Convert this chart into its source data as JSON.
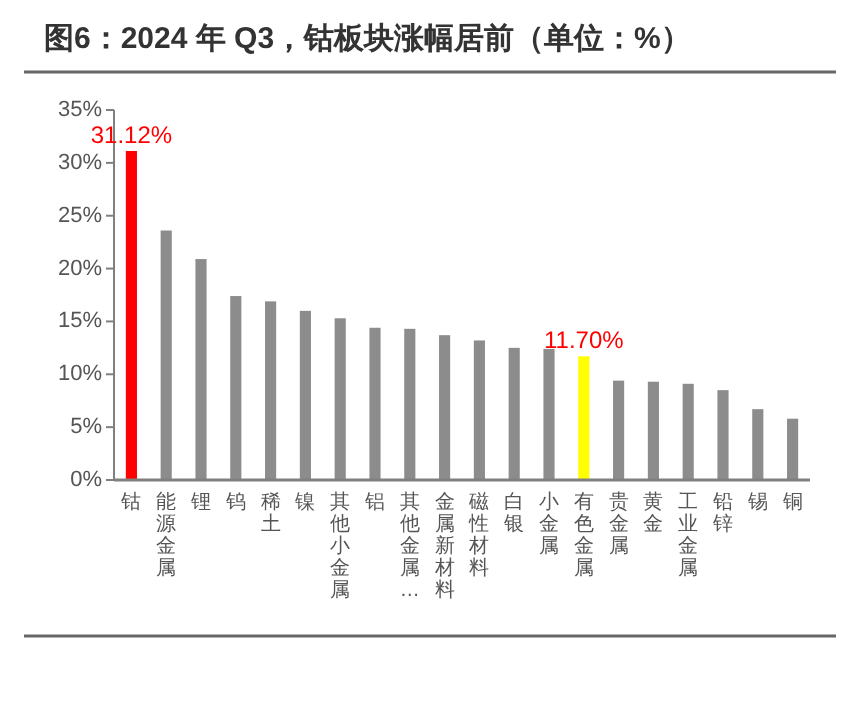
{
  "chart_data": {
    "type": "bar",
    "title": "图6：2024 年 Q3，钴板块涨幅居前（单位：%）",
    "categories": [
      "钴",
      "能源金属",
      "锂",
      "钨",
      "稀土",
      "镍",
      "其他小金属",
      "铝",
      "其他金属…",
      "金属新材料",
      "磁性材料",
      "白银",
      "小金属",
      "有色金属",
      "贵金属",
      "黄金",
      "工业金属",
      "铅锌",
      "锡",
      "铜"
    ],
    "values": [
      31.12,
      23.6,
      20.9,
      17.4,
      16.9,
      16.0,
      15.3,
      14.4,
      14.3,
      13.7,
      13.2,
      12.5,
      12.4,
      11.7,
      9.4,
      9.3,
      9.1,
      8.5,
      6.7,
      5.8
    ],
    "colors": [
      "#ff0000",
      "#8c8c8c",
      "#8c8c8c",
      "#8c8c8c",
      "#8c8c8c",
      "#8c8c8c",
      "#8c8c8c",
      "#8c8c8c",
      "#8c8c8c",
      "#8c8c8c",
      "#8c8c8c",
      "#8c8c8c",
      "#8c8c8c",
      "#ffff00",
      "#8c8c8c",
      "#8c8c8c",
      "#8c8c8c",
      "#8c8c8c",
      "#8c8c8c",
      "#8c8c8c"
    ],
    "value_labels": [
      "31.12%",
      null,
      null,
      null,
      null,
      null,
      null,
      null,
      null,
      null,
      null,
      null,
      null,
      "11.70%",
      null,
      null,
      null,
      null,
      null,
      null
    ],
    "ylim": [
      0,
      35
    ],
    "yticks": [
      {
        "value": 0,
        "label": "0%"
      },
      {
        "value": 5,
        "label": "5%"
      },
      {
        "value": 10,
        "label": "10%"
      },
      {
        "value": 15,
        "label": "15%"
      },
      {
        "value": 20,
        "label": "20%"
      },
      {
        "value": 25,
        "label": "25%"
      },
      {
        "value": 30,
        "label": "30%"
      },
      {
        "value": 35,
        "label": "35%"
      }
    ]
  }
}
